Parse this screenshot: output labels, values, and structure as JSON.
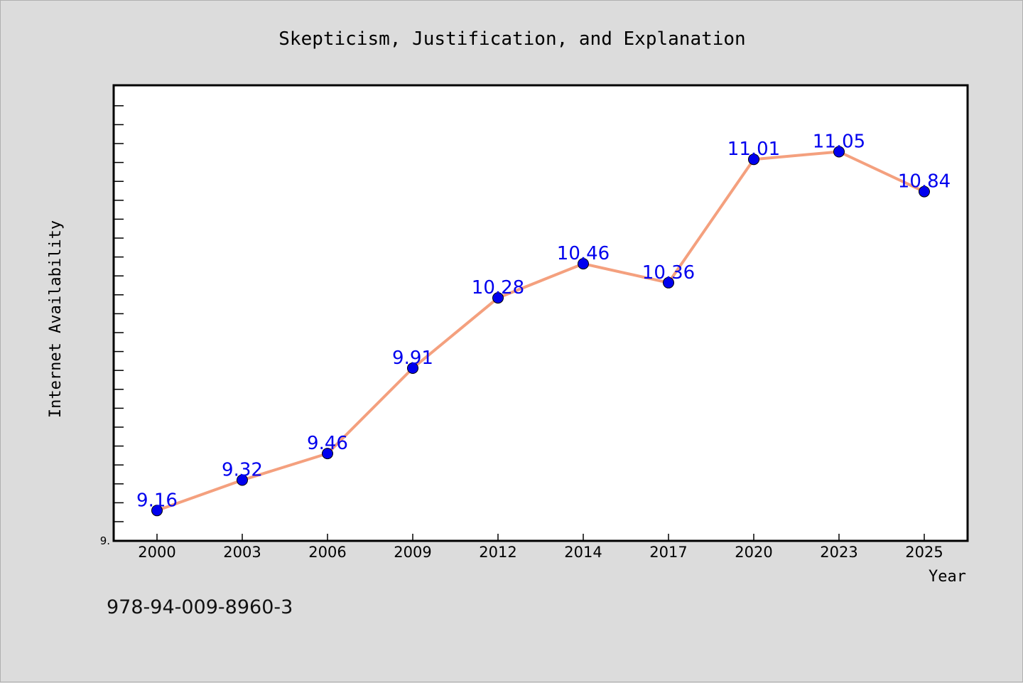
{
  "chart_data": {
    "type": "line",
    "title": "Skepticism, Justification, and Explanation",
    "xlabel": "Year",
    "ylabel": "Internet Availability",
    "categories": [
      "2000",
      "2003",
      "2006",
      "2009",
      "2012",
      "2014",
      "2017",
      "2020",
      "2023",
      "2025"
    ],
    "series": [
      {
        "values": [
          9.16,
          9.32,
          9.46,
          9.91,
          10.28,
          10.46,
          10.36,
          11.01,
          11.05,
          10.84
        ]
      }
    ],
    "y_tick_label": "9.",
    "ylim": [
      9.0,
      11.4
    ],
    "grid": false,
    "line_color": "#f4a07e",
    "marker_color": "#0000ee",
    "label_color": "#0000ee",
    "plot_background": "#ffffff",
    "page_background": "#dcdcdc"
  },
  "footer": {
    "isbn": "978-94-009-8960-3"
  }
}
